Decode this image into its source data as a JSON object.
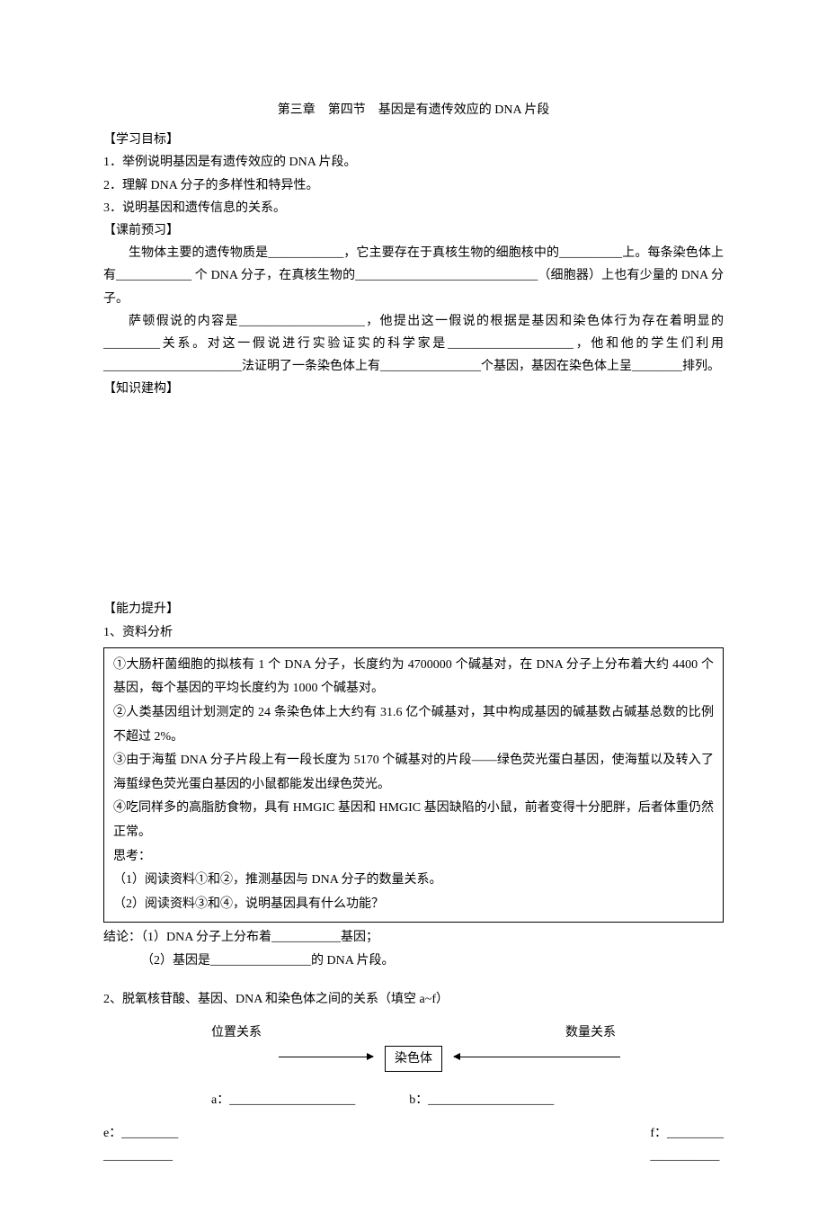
{
  "title": "第三章　第四节　基因是有遗传效应的 DNA 片段",
  "objectives_header": "【学习目标】",
  "objectives": {
    "item1": "1．举例说明基因是有遗传效应的 DNA 片段。",
    "item2": "2．理解 DNA 分子的多样性和特异性。",
    "item3": "3．说明基因和遗传信息的关系。"
  },
  "preclass_header": "【课前预习】",
  "preclass_para1_a": "生物体主要的遗传物质是____________，它主要存在于真核生物的细胞核中的__________上。每条染色体上有____________ 个 DNA 分子，在真核生物的_____________________________（细胞器）上也有少量的 DNA 分子。",
  "preclass_para2_a": "萨顿假说的内容是____________________，他提出这一假说的根据是基因和染色体行为存在着明显的_________关系。对这一假说进行实验证实的科学家是____________________，他和他的学生们利用______________________法证明了一条染色体上有________________个基因，基因在染色体上呈________排列。",
  "knowledge_header": "【知识建构】",
  "ability_header": "【能力提升】",
  "analysis_header": "1、资料分析",
  "box": {
    "item1": "①大肠杆菌细胞的拟核有 1 个 DNA 分子，长度约为 4700000 个碱基对，在 DNA 分子上分布着大约 4400 个基因，每个基因的平均长度约为 1000 个碱基对。",
    "item2": "②人类基因组计划测定的 24 条染色体上大约有 31.6 亿个碱基对，其中构成基因的碱基数占碱基总数的比例不超过 2%。",
    "item3": "③由于海蜇 DNA 分子片段上有一段长度为 5170 个碱基对的片段——绿色荧光蛋白基因，使海蜇以及转入了海蜇绿色荧光蛋白基因的小鼠都能发出绿色荧光。",
    "item4": "④吃同样多的高脂肪食物，具有 HMGIC 基因和 HMGIC 基因缺陷的小鼠，前者变得十分肥胖，后者体重仍然正常。",
    "think_label": "思考：",
    "think1": "（1）阅读资料①和②，推测基因与 DNA 分子的数量关系。",
    "think2": "（2）阅读资料③和④，说明基因具有什么功能？"
  },
  "conclusion1": "结论：（1）DNA 分子上分布着___________基因；",
  "conclusion2": "（2）基因是________________的 DNA 片段。",
  "section2_header": "2、脱氧核苷酸、基因、DNA 和染色体之间的关系（填空 a~f）",
  "diagram": {
    "pos_label": "位置关系",
    "qty_label": "数量关系",
    "chromosome": "染色体",
    "a_label": "a：____________________",
    "b_label": "b：____________________",
    "e_label1": "e：_________",
    "e_label2": "___________",
    "f_label1": "f：_________",
    "f_label2": "___________"
  }
}
